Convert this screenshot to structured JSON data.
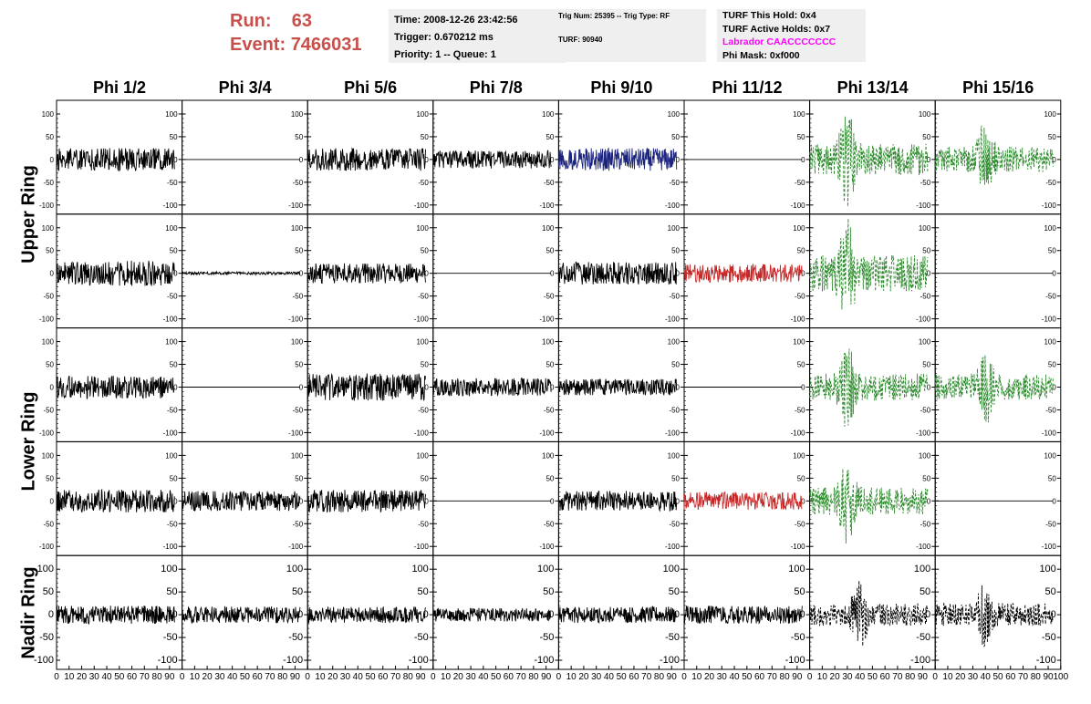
{
  "header": {
    "run_label": "Run:",
    "run_value": "63",
    "event_label": "Event:",
    "event_value": "7466031",
    "time": "Time: 2008-12-26 23:42:56",
    "trigger": "Trigger: 0.670212 ms",
    "priority": "Priority: 1 -- Queue: 1",
    "trig_num": "Trig Num: 25395 -- Trig Type: RF",
    "turf": "TURF: 90940",
    "turf_hold": "TURF This Hold: 0x4",
    "turf_active": "TURF Active Holds: 0x7",
    "labrador": "Labrador CAACCCCCCC",
    "phi_mask": "Phi Mask: 0xf000"
  },
  "colors": {
    "run_text": "#c8504a",
    "labrador": "#ff00ff",
    "black": "#000000",
    "blue": "#1a237e",
    "red": "#c62828",
    "green": "#2e8b2e",
    "panel_bg": "#efefef"
  },
  "chart_data": {
    "type": "line",
    "title": "",
    "columns": [
      "Phi 1/2",
      "Phi 3/4",
      "Phi 5/6",
      "Phi 7/8",
      "Phi 9/10",
      "Phi 11/12",
      "Phi 13/14",
      "Phi 15/16"
    ],
    "rows": [
      "Upper Ring",
      "Upper Ring",
      "Lower Ring",
      "Lower Ring",
      "Nadir Ring"
    ],
    "ring_labels": [
      {
        "label": "Upper Ring",
        "rows": [
          0,
          1
        ]
      },
      {
        "label": "Lower Ring",
        "rows": [
          2,
          3
        ]
      },
      {
        "label": "Nadir Ring",
        "rows": [
          4
        ]
      }
    ],
    "ylim": [
      -120,
      130
    ],
    "yticks": [
      -100,
      -50,
      0,
      50,
      100
    ],
    "ytick_labels": [
      "-100",
      "-50",
      "0",
      "50",
      "100"
    ],
    "xlim": [
      0,
      100
    ],
    "xticks": [
      0,
      10,
      20,
      30,
      40,
      50,
      60,
      70,
      80,
      90,
      100
    ],
    "xtick_labels": [
      "0",
      "10",
      "20",
      "30",
      "40",
      "50",
      "60",
      "70",
      "80",
      "90",
      "100"
    ],
    "trace_x_range": [
      0,
      94
    ],
    "styles": {
      "k": {
        "color": "#000000",
        "dash": ""
      },
      "b": {
        "color": "#1a237e",
        "dash": ""
      },
      "r": {
        "color": "#c62828",
        "dash": ""
      },
      "g": {
        "color": "#2e8b2e",
        "dash": "3,2"
      },
      "kd": {
        "color": "#000000",
        "dash": "3,2"
      }
    },
    "grid": [
      [
        {
          "s": "k",
          "a": 25,
          "seed": 11
        },
        {
          "s": "k",
          "a": 0,
          "seed": 12
        },
        {
          "s": "k",
          "a": 25,
          "seed": 13
        },
        {
          "s": "k",
          "a": 20,
          "seed": 14
        },
        {
          "s": "b",
          "a": 25,
          "seed": 15
        },
        {
          "s": "k",
          "a": 0,
          "seed": 16
        },
        {
          "s": "g",
          "a": 35,
          "seed": 17,
          "b": 30
        },
        {
          "s": "g",
          "a": 28,
          "seed": 18,
          "b": 40
        }
      ],
      [
        {
          "s": "k",
          "a": 28,
          "seed": 21
        },
        {
          "s": "k",
          "a": 3,
          "seed": 22
        },
        {
          "s": "k",
          "a": 22,
          "seed": 23
        },
        {
          "s": "k",
          "a": 0,
          "seed": 24
        },
        {
          "s": "k",
          "a": 25,
          "seed": 25
        },
        {
          "s": "r",
          "a": 20,
          "seed": 26
        },
        {
          "s": "g",
          "a": 40,
          "seed": 27,
          "b": 30
        },
        {
          "s": "k",
          "a": 0,
          "seed": 28
        }
      ],
      [
        {
          "s": "k",
          "a": 25,
          "seed": 31
        },
        {
          "s": "k",
          "a": 0,
          "seed": 32
        },
        {
          "s": "k",
          "a": 30,
          "seed": 33
        },
        {
          "s": "k",
          "a": 20,
          "seed": 34
        },
        {
          "s": "k",
          "a": 18,
          "seed": 35
        },
        {
          "s": "k",
          "a": 0,
          "seed": 36
        },
        {
          "s": "g",
          "a": 30,
          "seed": 37,
          "b": 30
        },
        {
          "s": "g",
          "a": 28,
          "seed": 38,
          "b": 40
        }
      ],
      [
        {
          "s": "k",
          "a": 25,
          "seed": 41
        },
        {
          "s": "k",
          "a": 22,
          "seed": 42
        },
        {
          "s": "k",
          "a": 25,
          "seed": 43
        },
        {
          "s": "k",
          "a": 0,
          "seed": 44
        },
        {
          "s": "k",
          "a": 22,
          "seed": 45
        },
        {
          "s": "r",
          "a": 20,
          "seed": 46
        },
        {
          "s": "g",
          "a": 30,
          "seed": 47,
          "b": 30
        },
        {
          "s": "k",
          "a": 0,
          "seed": 48
        }
      ],
      [
        {
          "s": "k",
          "a": 20,
          "seed": 51
        },
        {
          "s": "k",
          "a": 18,
          "seed": 52
        },
        {
          "s": "k",
          "a": 18,
          "seed": 53
        },
        {
          "s": "k",
          "a": 15,
          "seed": 54
        },
        {
          "s": "k",
          "a": 18,
          "seed": 55
        },
        {
          "s": "k",
          "a": 20,
          "seed": 56
        },
        {
          "s": "kd",
          "a": 25,
          "seed": 57,
          "b": 40
        },
        {
          "s": "kd",
          "a": 25,
          "seed": 58,
          "b": 40
        }
      ]
    ]
  }
}
